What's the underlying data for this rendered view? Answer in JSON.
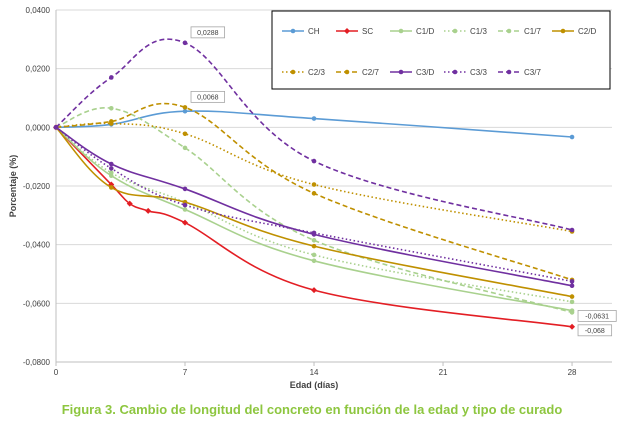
{
  "chart_data": {
    "type": "line",
    "title": "",
    "xlabel": "Edad (días)",
    "ylabel": "Porcentaje (%)",
    "xlim": [
      0,
      30
    ],
    "ylim": [
      -0.08,
      0.04
    ],
    "x_ticks": [
      0,
      7,
      14,
      21,
      28
    ],
    "x_tick_labels": [
      "0",
      "7",
      "14",
      "21",
      "28"
    ],
    "y_ticks": [
      0.04,
      0.02,
      0.0,
      -0.02,
      -0.04,
      -0.06,
      -0.08
    ],
    "y_tick_labels": [
      "0,0400",
      "0,0200",
      "0,0000",
      "-0,0200",
      "-0,0400",
      "-0,0600",
      "-0,0800"
    ],
    "grid": "horizontal",
    "legend_position": "top-right",
    "series": [
      {
        "name": "CH",
        "color": "#5b9bd5",
        "dash": "solid",
        "marker": "circle",
        "x": [
          0,
          3,
          7,
          14,
          28
        ],
        "y": [
          0.0,
          0.001,
          0.0055,
          0.003,
          -0.0033
        ]
      },
      {
        "name": "SC",
        "color": "#e31e24",
        "dash": "solid",
        "marker": "diamond",
        "x": [
          0,
          3,
          4,
          5,
          7,
          14,
          28
        ],
        "y": [
          0.0,
          -0.0195,
          -0.026,
          -0.0285,
          -0.0325,
          -0.0555,
          -0.068
        ]
      },
      {
        "name": "C1/D",
        "color": "#a9d18e",
        "dash": "solid",
        "marker": "circle",
        "x": [
          0,
          3,
          7,
          14,
          28
        ],
        "y": [
          0.0,
          -0.0165,
          -0.028,
          -0.0455,
          -0.0625
        ]
      },
      {
        "name": "C1/3",
        "color": "#a9d18e",
        "dash": "dot",
        "marker": "circle",
        "x": [
          0,
          3,
          7,
          14,
          28
        ],
        "y": [
          0.0,
          -0.0155,
          -0.0255,
          -0.0435,
          -0.0595
        ]
      },
      {
        "name": "C1/7",
        "color": "#a9d18e",
        "dash": "dash",
        "marker": "circle",
        "x": [
          0,
          3,
          7,
          14,
          28
        ],
        "y": [
          0.0,
          0.0065,
          -0.007,
          -0.0385,
          -0.0631
        ]
      },
      {
        "name": "C2/D",
        "color": "#bf9000",
        "dash": "solid",
        "marker": "circle",
        "x": [
          0,
          3,
          7,
          14,
          28
        ],
        "y": [
          0.0,
          -0.0205,
          -0.0255,
          -0.0405,
          -0.0577
        ]
      },
      {
        "name": "C2/3",
        "color": "#bf9000",
        "dash": "dot",
        "marker": "circle",
        "x": [
          0,
          3,
          7,
          14,
          28
        ],
        "y": [
          0.0,
          0.0013,
          -0.0022,
          -0.0195,
          -0.0355
        ]
      },
      {
        "name": "C2/7",
        "color": "#bf9000",
        "dash": "dash",
        "marker": "circle",
        "x": [
          0,
          3,
          7,
          14,
          28
        ],
        "y": [
          0.0,
          0.002,
          0.0068,
          -0.0225,
          -0.052
        ]
      },
      {
        "name": "C3/D",
        "color": "#7030a0",
        "dash": "solid",
        "marker": "circle",
        "x": [
          0,
          3,
          7,
          14,
          28
        ],
        "y": [
          0.0,
          -0.0125,
          -0.021,
          -0.0365,
          -0.054
        ]
      },
      {
        "name": "C3/3",
        "color": "#7030a0",
        "dash": "dot",
        "marker": "circle",
        "x": [
          0,
          3,
          7,
          14,
          28
        ],
        "y": [
          0.0,
          -0.014,
          -0.0265,
          -0.036,
          -0.0525
        ]
      },
      {
        "name": "C3/7",
        "color": "#7030a0",
        "dash": "dash",
        "marker": "circle",
        "x": [
          0,
          3,
          7,
          14,
          28
        ],
        "y": [
          0.0,
          0.017,
          0.0288,
          -0.0115,
          -0.035
        ]
      }
    ],
    "annotations": [
      {
        "text": "0,0288",
        "x": 7,
        "y": 0.0288
      },
      {
        "text": "0,0068",
        "x": 7,
        "y": 0.0068
      },
      {
        "text": "-0,0631",
        "x": 28,
        "y": -0.0631
      },
      {
        "text": "-0,068",
        "x": 28,
        "y": -0.068
      }
    ]
  },
  "caption": "Figura 3. Cambio de longitud del concreto en función de la edad y tipo de curado"
}
